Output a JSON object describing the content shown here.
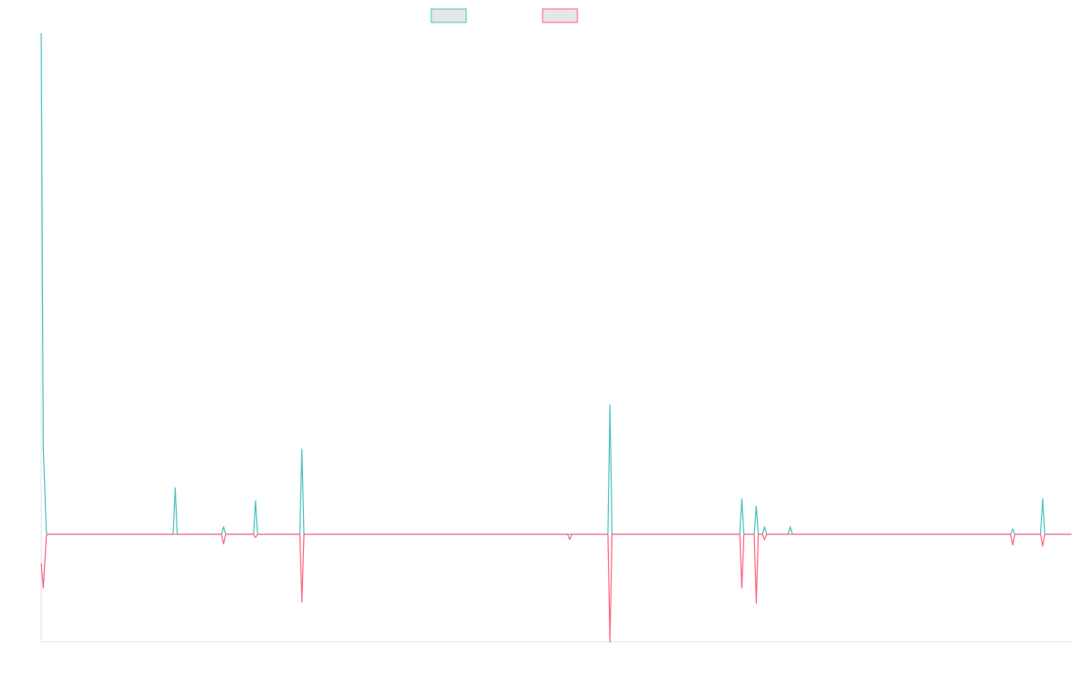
{
  "chart_data": {
    "type": "line",
    "title": "",
    "xlabel": "",
    "ylabel": "",
    "grid": false,
    "legend": "top-center",
    "xlim": [
      0,
      1000
    ],
    "ylim": [
      -100,
      465
    ],
    "series": [
      {
        "color": "#4bc0c0",
        "points": [
          [
            0,
            465
          ],
          [
            2,
            80
          ],
          [
            5,
            1
          ],
          [
            7,
            0
          ],
          [
            128,
            0
          ],
          [
            130,
            43
          ],
          [
            132,
            0
          ],
          [
            175,
            0
          ],
          [
            177,
            7
          ],
          [
            179,
            0
          ],
          [
            206,
            0
          ],
          [
            208,
            31
          ],
          [
            210,
            0
          ],
          [
            251,
            0
          ],
          [
            253,
            79
          ],
          [
            255,
            0
          ],
          [
            470,
            0
          ],
          [
            472,
            0.3
          ],
          [
            474,
            0
          ],
          [
            550,
            0
          ],
          [
            552,
            120
          ],
          [
            554,
            0
          ],
          [
            678,
            0
          ],
          [
            680,
            33
          ],
          [
            682,
            0
          ],
          [
            692,
            0
          ],
          [
            694,
            26
          ],
          [
            696,
            0
          ],
          [
            700,
            0
          ],
          [
            702,
            7
          ],
          [
            704,
            0
          ],
          [
            725,
            0
          ],
          [
            727,
            7
          ],
          [
            729,
            0
          ],
          [
            941,
            0
          ],
          [
            943,
            5
          ],
          [
            945,
            0
          ],
          [
            970,
            0
          ],
          [
            972,
            33
          ],
          [
            974,
            0
          ],
          [
            1000,
            0
          ]
        ]
      },
      {
        "color": "#ff6384",
        "points": [
          [
            0,
            -27
          ],
          [
            2,
            -50
          ],
          [
            5,
            -1
          ],
          [
            7,
            0
          ],
          [
            175,
            0
          ],
          [
            177,
            -9
          ],
          [
            179,
            0
          ],
          [
            206,
            0
          ],
          [
            208,
            -3
          ],
          [
            210,
            0
          ],
          [
            251,
            0
          ],
          [
            253,
            -63
          ],
          [
            255,
            0
          ],
          [
            511,
            0
          ],
          [
            513,
            -5
          ],
          [
            515,
            0
          ],
          [
            550,
            0
          ],
          [
            552,
            -100
          ],
          [
            554,
            0
          ],
          [
            678,
            0
          ],
          [
            680,
            -50
          ],
          [
            682,
            0
          ],
          [
            692,
            0
          ],
          [
            694,
            -64
          ],
          [
            696,
            0
          ],
          [
            700,
            0
          ],
          [
            702,
            -5
          ],
          [
            704,
            0
          ],
          [
            941,
            0
          ],
          [
            943,
            -10
          ],
          [
            945,
            0
          ],
          [
            970,
            0
          ],
          [
            972,
            -11
          ],
          [
            974,
            0
          ],
          [
            1000,
            0
          ]
        ]
      }
    ]
  }
}
